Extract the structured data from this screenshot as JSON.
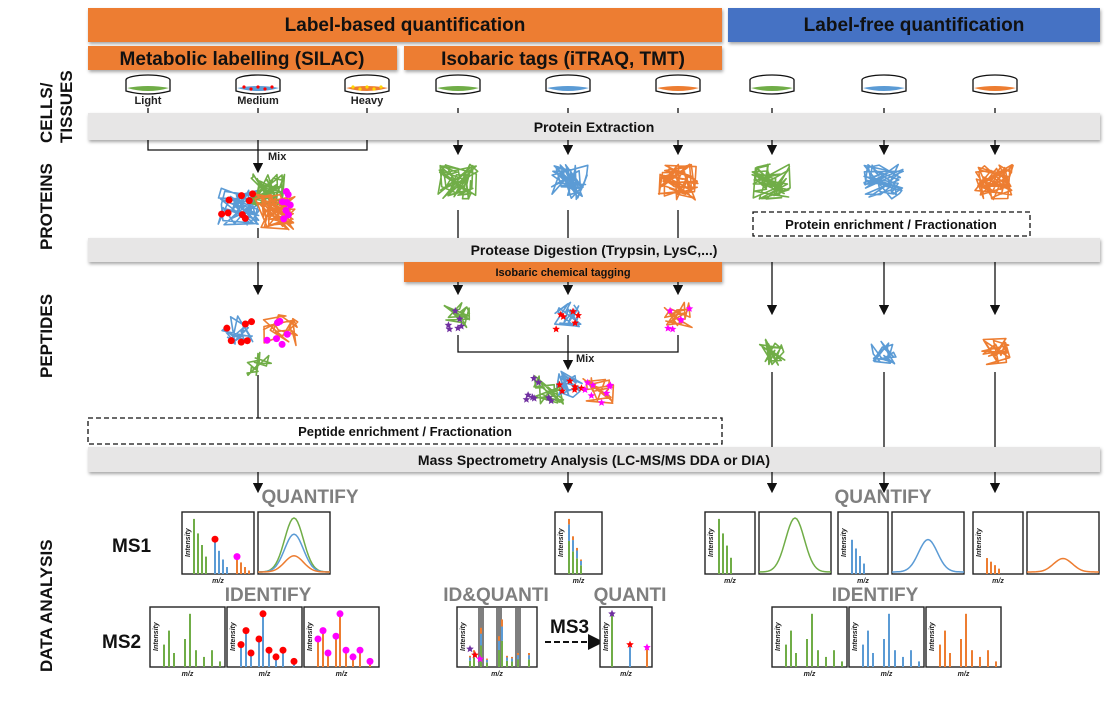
{
  "headers": {
    "label_based": "Label-based quantification",
    "label_free": "Label-free quantification",
    "silac": "Metabolic labelling (SILAC)",
    "isobaric": "Isobaric tags (iTRAQ, TMT)"
  },
  "side_labels": {
    "cells_1": "CELLS/",
    "cells_2": "TISSUES",
    "proteins": "PROTEINS",
    "peptides": "PEPTIDES",
    "data_analysis": "DATA ANALYSIS"
  },
  "dish_labels": [
    "Light",
    "Medium",
    "Heavy"
  ],
  "steps": {
    "protein_extraction": "Protein Extraction",
    "protease_digestion": "Protease Digestion (Trypsin, LysC,...)",
    "isobaric_tagging": "Isobaric chemical tagging",
    "protein_enrichment": "Protein enrichment / Fractionation",
    "peptide_enrichment": "Peptide enrichment / Fractionation",
    "ms_analysis": "Mass Spectrometry Analysis (LC-MS/MS DDA or DIA)",
    "mix": "Mix"
  },
  "analysis": {
    "quantify": "QUANTIFY",
    "identify": "IDENTIFY",
    "id_quanti": "ID&QUANTI",
    "quanti": "QUANTI",
    "ms1": "MS1",
    "ms2": "MS2",
    "ms3": "MS3",
    "x_axis": "m/z",
    "y_axis": "Intensity"
  },
  "colors": {
    "orange": "#ed7d31",
    "blue": "#4472c4",
    "green": "#70ad47",
    "light_blue": "#5b9bd5",
    "gray_bar": "#e7e6e6",
    "red_label": "#ff0000",
    "magenta_label": "#ff00ff",
    "purple_label": "#7030a0"
  }
}
